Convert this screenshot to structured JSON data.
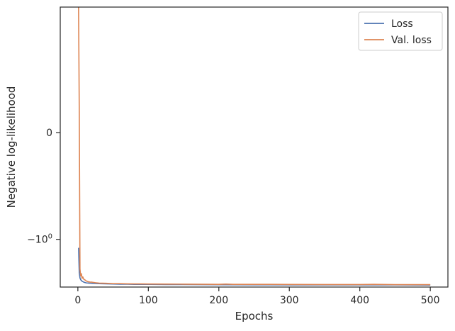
{
  "chart_data": {
    "type": "line",
    "title": "",
    "xlabel": "Epochs",
    "ylabel": "Negative log-likelihood",
    "xlim": [
      -25,
      525
    ],
    "x_ticks": [
      {
        "value": 0,
        "label": "0"
      },
      {
        "value": 100,
        "label": "100"
      },
      {
        "value": 200,
        "label": "200"
      },
      {
        "value": 300,
        "label": "300"
      },
      {
        "value": 400,
        "label": "400"
      },
      {
        "value": 500,
        "label": "500"
      }
    ],
    "y_scale": "symlog",
    "ylim": [
      -2.8,
      1.5
    ],
    "y_ticks": [
      {
        "value": 0,
        "label": "0"
      },
      {
        "value": -1,
        "label": "−10",
        "exponent": "0"
      }
    ],
    "grid": false,
    "legend_position": "top-right",
    "series": [
      {
        "name": "Loss",
        "color": "#4c72b0",
        "x": [
          1,
          2,
          3,
          4,
          5,
          6,
          8,
          10,
          12,
          15,
          20,
          25,
          30,
          40,
          50,
          60,
          70,
          80,
          100,
          125,
          150,
          175,
          200,
          250,
          300,
          350,
          400,
          450,
          500
        ],
        "y": [
          -1.2,
          -2.05,
          -2.3,
          -2.39,
          -2.43,
          -2.47,
          -2.51,
          -2.54,
          -2.56,
          -2.57,
          -2.58,
          -2.59,
          -2.6,
          -2.61,
          -2.62,
          -2.63,
          -2.63,
          -2.64,
          -2.64,
          -2.65,
          -2.65,
          -2.655,
          -2.66,
          -2.665,
          -2.67,
          -2.67,
          -2.675,
          -2.675,
          -2.68
        ]
      },
      {
        "name": "Val. loss",
        "color": "#dd8452",
        "x": [
          1,
          2,
          3,
          4,
          5,
          6,
          7,
          8,
          10,
          12,
          15,
          18,
          20,
          25,
          30,
          40,
          50,
          60,
          70,
          80,
          90,
          100,
          125,
          150,
          175,
          200,
          210,
          220,
          250,
          300,
          350,
          400,
          420,
          450,
          500
        ],
        "y": [
          1.5,
          0.2,
          -1.9,
          -2.2,
          -2.1,
          -2.32,
          -2.25,
          -2.35,
          -2.4,
          -2.46,
          -2.5,
          -2.52,
          -2.52,
          -2.55,
          -2.57,
          -2.58,
          -2.6,
          -2.6,
          -2.61,
          -2.615,
          -2.615,
          -2.62,
          -2.625,
          -2.63,
          -2.635,
          -2.64,
          -2.625,
          -2.64,
          -2.64,
          -2.645,
          -2.65,
          -2.65,
          -2.64,
          -2.655,
          -2.655
        ]
      }
    ]
  }
}
